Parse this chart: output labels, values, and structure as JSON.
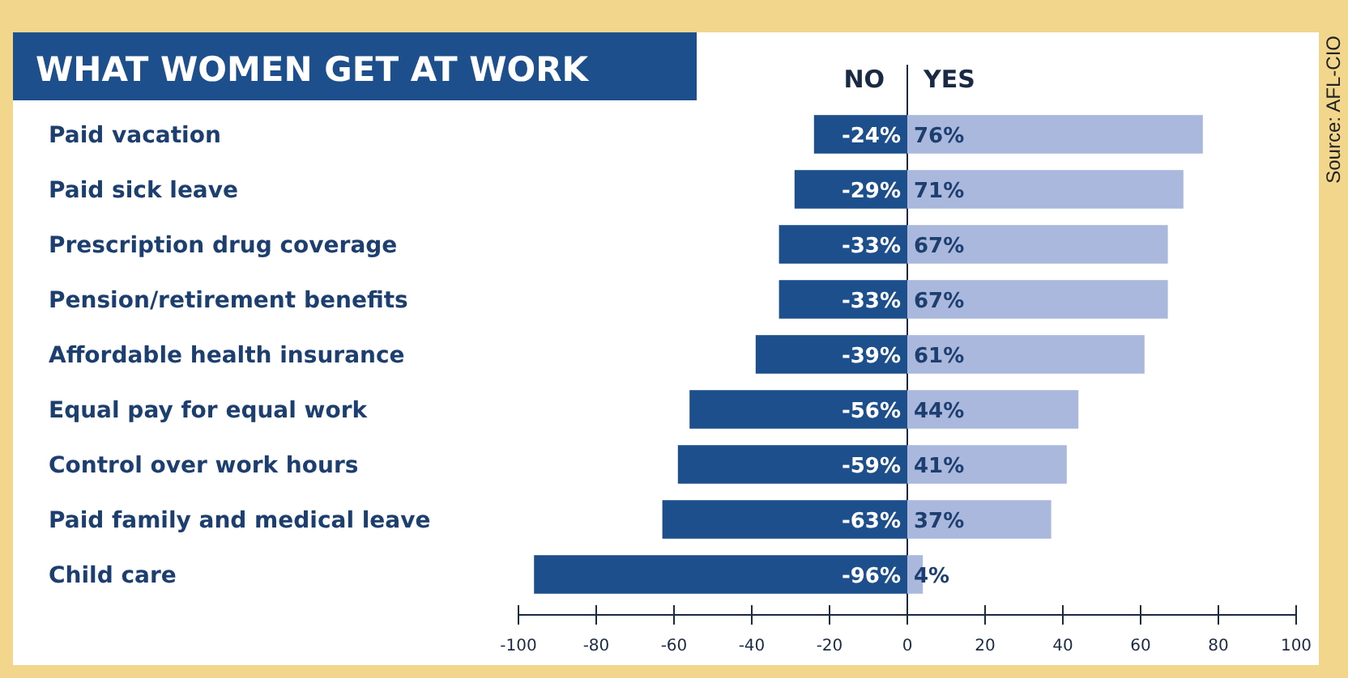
{
  "chart_data": {
    "type": "bar",
    "orientation": "horizontal",
    "stacked": true,
    "title": "WHAT WOMEN GET AT WORK",
    "categories": [
      "Paid vacation",
      "Paid sick leave",
      "Prescription drug coverage",
      "Pension/retirement benefits",
      "Affordable health insurance",
      "Equal pay for equal work",
      "Control over work hours",
      "Paid family and medical leave",
      "Child care"
    ],
    "series": [
      {
        "name": "NO",
        "color": "#1d4f8c",
        "values": [
          -24,
          -29,
          -33,
          -33,
          -39,
          -56,
          -59,
          -63,
          -96
        ],
        "value_labels": [
          "-24%",
          "-29%",
          "-33%",
          "-33%",
          "-39%",
          "-56%",
          "-59%",
          "-63%",
          "-96%"
        ]
      },
      {
        "name": "YES",
        "color": "#a9b8dc",
        "values": [
          76,
          71,
          67,
          67,
          61,
          44,
          41,
          37,
          4
        ],
        "value_labels": [
          "76%",
          "71%",
          "67%",
          "67%",
          "61%",
          "44%",
          "41%",
          "37%",
          "4%"
        ]
      }
    ],
    "xlim": [
      -100,
      100
    ],
    "xticks": [
      -100,
      -80,
      -60,
      -40,
      -20,
      0,
      20,
      40,
      60,
      80,
      100
    ],
    "annotations": [
      "Source: AFL-CIO"
    ]
  }
}
